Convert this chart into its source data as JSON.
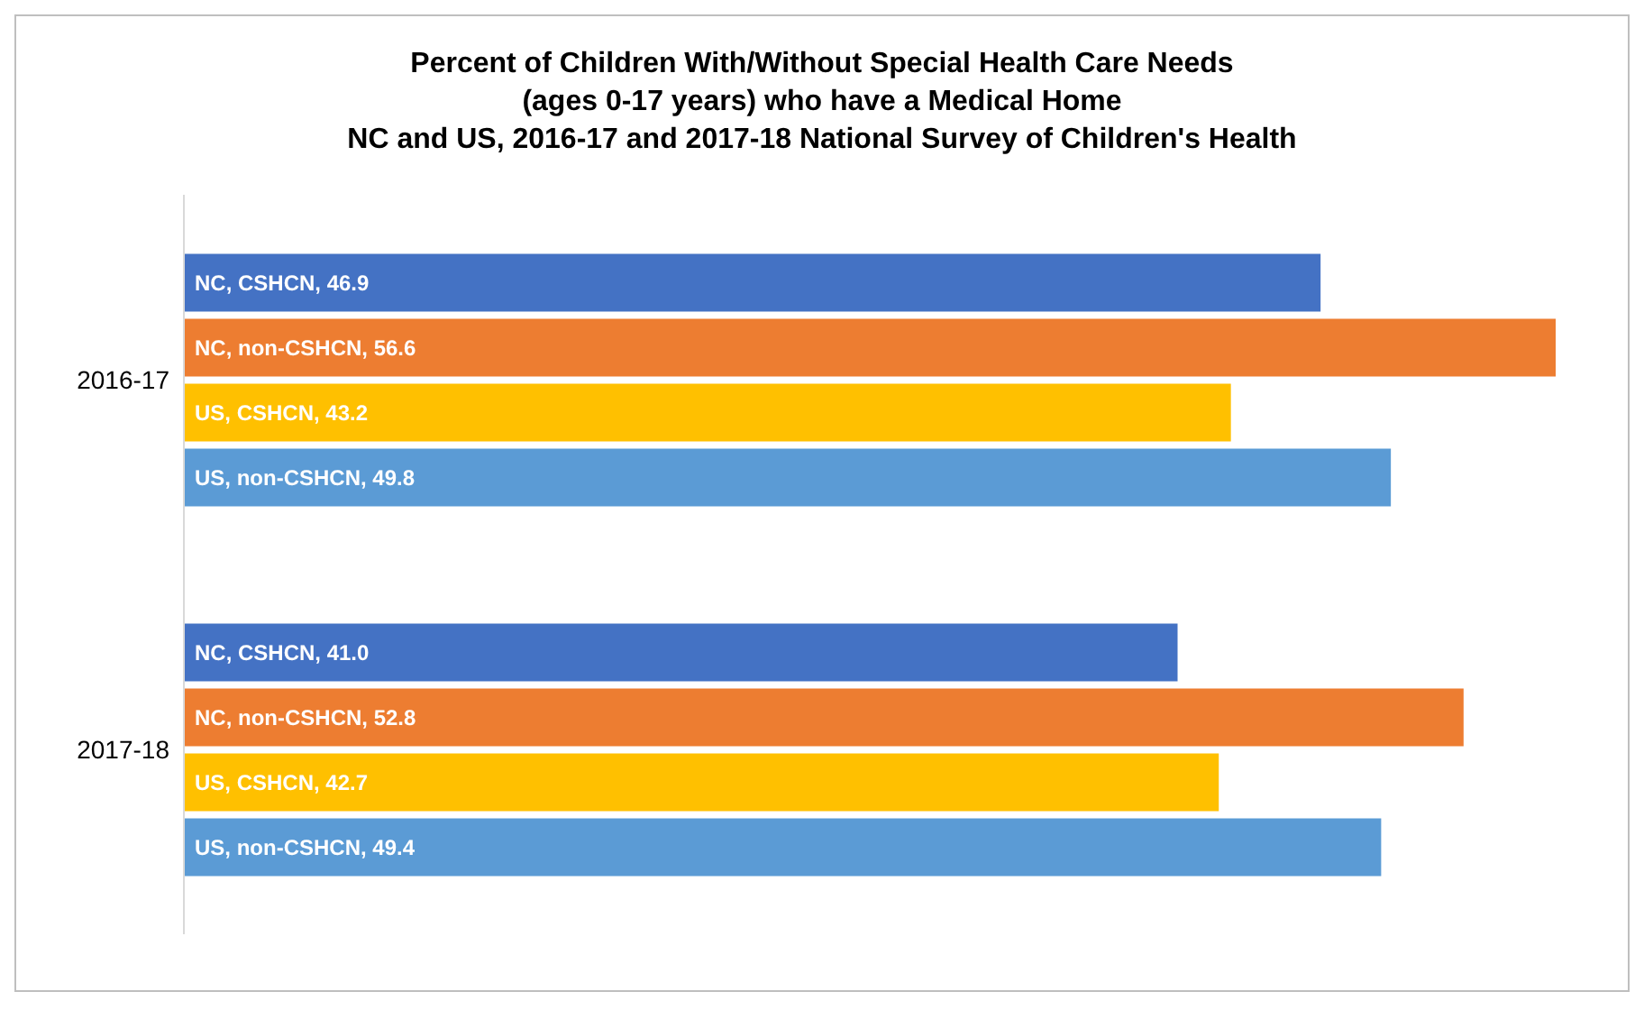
{
  "chart_data": {
    "type": "bar",
    "orientation": "horizontal",
    "title": "Percent of Children With/Without Special Health Care Needs\n(ages 0-17 years) who have a Medical Home\nNC and US, 2016-17 and 2017-18 National Survey of Children's Health",
    "categories": [
      "2016-17",
      "2017-18"
    ],
    "series": [
      {
        "color": "#4472c4",
        "values": [
          46.9,
          41.0
        ],
        "value_labels": [
          "NC, CSHCN, 46.9",
          "NC, CSHCN, 41.0"
        ]
      },
      {
        "color": "#ed7d31",
        "values": [
          56.6,
          52.8
        ],
        "value_labels": [
          "NC, non-CSHCN, 56.6",
          "NC, non-CSHCN, 52.8"
        ]
      },
      {
        "color": "#ffc000",
        "values": [
          43.2,
          42.7
        ],
        "value_labels": [
          "US, CSHCN, 43.2",
          "US, CSHCN, 42.7"
        ]
      },
      {
        "color": "#5b9bd5",
        "values": [
          49.8,
          49.4
        ],
        "value_labels": [
          "US, non-CSHCN, 49.8",
          "US, non-CSHCN, 49.4"
        ]
      }
    ],
    "legend": false,
    "grid": false
  }
}
